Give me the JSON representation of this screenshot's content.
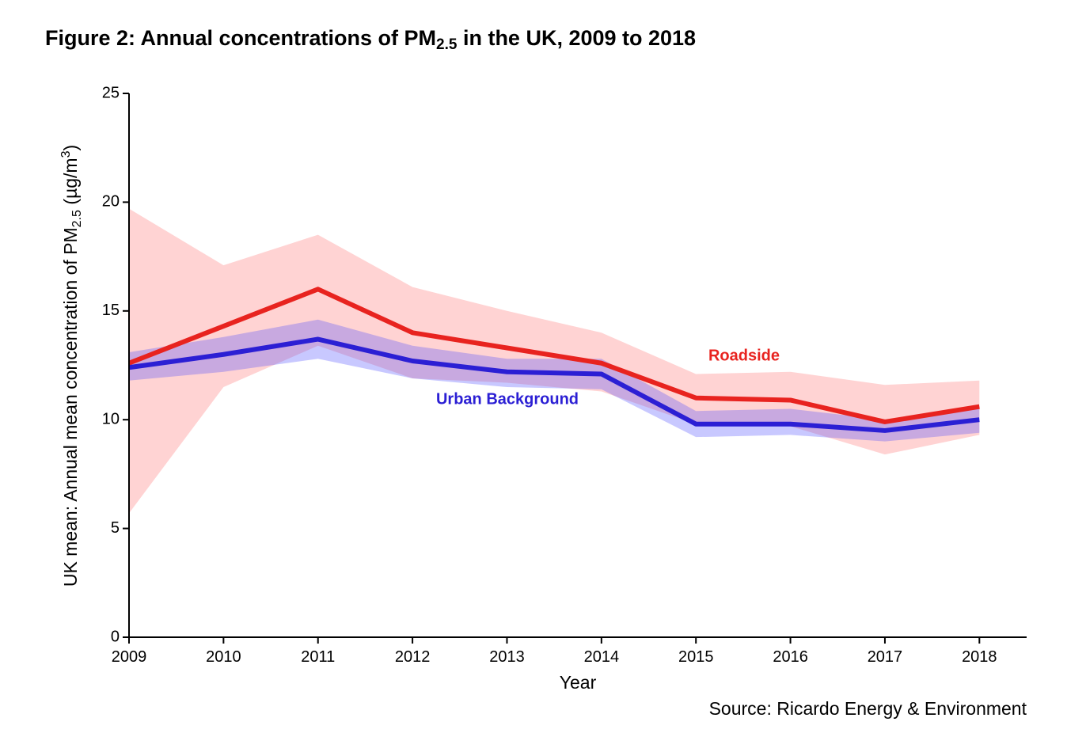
{
  "chart_data": {
    "type": "line",
    "title": {
      "text": "Figure 2: Annual concentrations of PM",
      "subscript": "2.5",
      "rest": " in the UK, 2009 to 2018"
    },
    "y_label": {
      "text": "UK mean: Annual mean concentration of PM",
      "subscript": "2.5",
      "unit": " (µg/m",
      "superscript": "3",
      "close": ")"
    },
    "x_label": "Year",
    "source": "Source: Ricardo Energy & Environment",
    "x": [
      2009,
      2010,
      2011,
      2012,
      2013,
      2014,
      2015,
      2016,
      2017,
      2018
    ],
    "xlim": [
      2009,
      2018.5
    ],
    "xticks": [
      2009,
      2010,
      2011,
      2012,
      2013,
      2014,
      2015,
      2016,
      2017,
      2018
    ],
    "ylim": [
      0,
      25
    ],
    "yticks": [
      0,
      5,
      10,
      15,
      20,
      25
    ],
    "series": [
      {
        "name": "Roadside",
        "color": "#e8231f",
        "band_color": "#ff6e6e",
        "values": [
          12.6,
          14.3,
          16.0,
          14.0,
          13.3,
          12.6,
          11.0,
          10.9,
          9.9,
          10.6
        ],
        "upper": [
          19.7,
          17.1,
          18.5,
          16.1,
          15.0,
          14.0,
          12.1,
          12.2,
          11.6,
          11.8
        ],
        "lower": [
          5.7,
          11.5,
          13.4,
          11.9,
          11.7,
          11.3,
          9.8,
          9.7,
          8.4,
          9.3
        ]
      },
      {
        "name": "Urban Background",
        "color": "#2b1fd4",
        "band_color": "#4a4aff",
        "values": [
          12.4,
          13.0,
          13.7,
          12.7,
          12.2,
          12.1,
          9.8,
          9.8,
          9.5,
          10.0
        ],
        "upper": [
          13.1,
          13.8,
          14.6,
          13.4,
          12.8,
          12.8,
          10.4,
          10.5,
          10.0,
          10.6
        ],
        "lower": [
          11.8,
          12.2,
          12.8,
          11.9,
          11.5,
          11.4,
          9.2,
          9.3,
          9.0,
          9.4
        ]
      }
    ]
  }
}
